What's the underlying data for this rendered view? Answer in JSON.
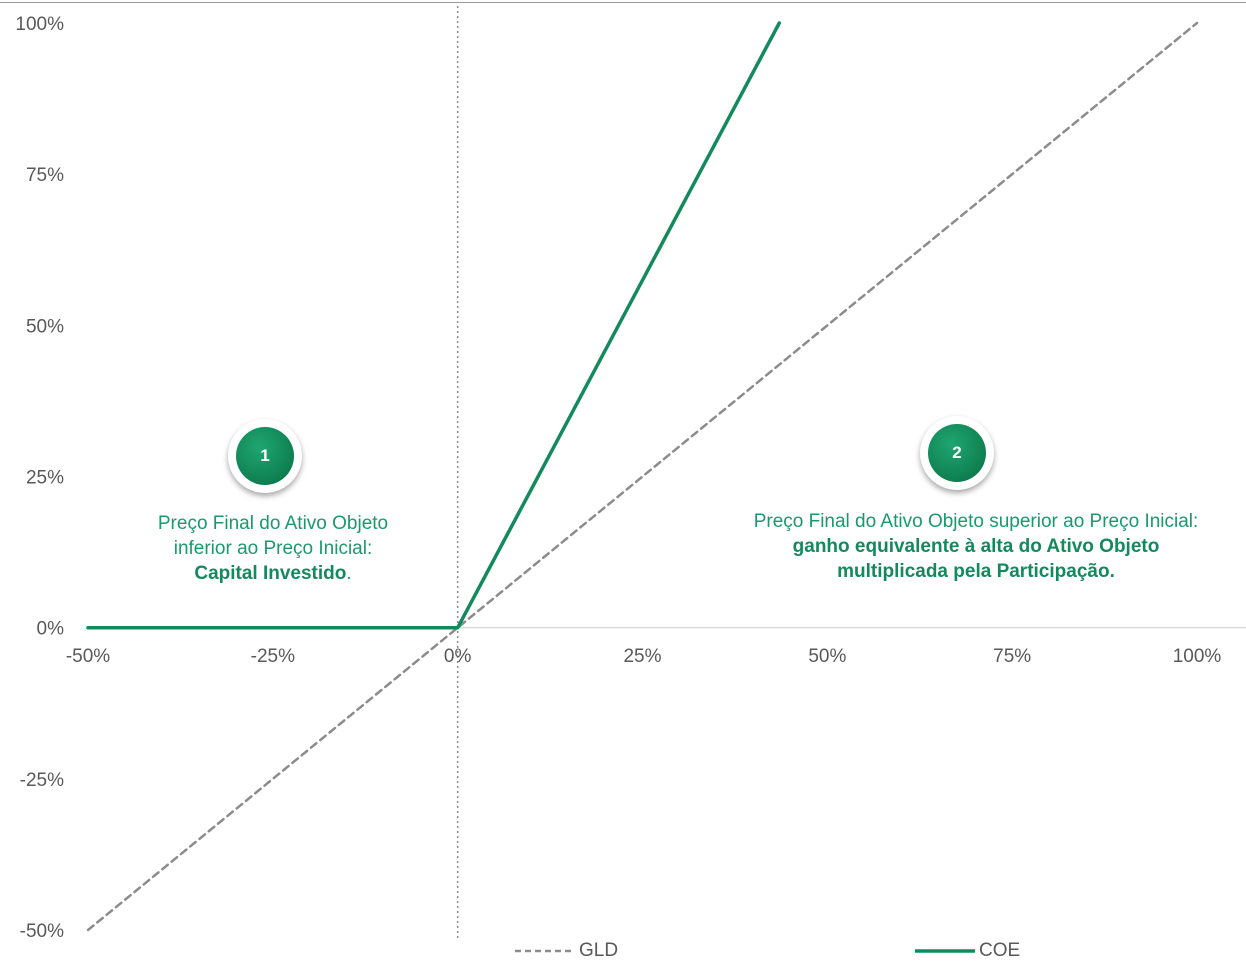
{
  "chart_data": {
    "type": "line",
    "x_ticks": [
      "-50%",
      "-25%",
      "0%",
      "25%",
      "50%",
      "75%",
      "100%"
    ],
    "y_ticks": [
      "100%",
      "75%",
      "50%",
      "25%",
      "0%",
      "-25%",
      "-50%"
    ],
    "xlim": [
      -50,
      100
    ],
    "ylim": [
      -50,
      100
    ],
    "grid": false,
    "legend_position": "bottom",
    "series": [
      {
        "name": "GLD",
        "style": "dashed",
        "color": "#8c8c8c",
        "points": [
          [
            -50,
            -50
          ],
          [
            0,
            0
          ],
          [
            100,
            100
          ]
        ]
      },
      {
        "name": "COE",
        "style": "solid",
        "color": "#138a5e",
        "points": [
          [
            -50,
            0
          ],
          [
            0,
            0
          ],
          [
            43.5,
            100
          ]
        ]
      }
    ],
    "annotations": [
      {
        "badge": "1",
        "lines": [
          "Preço Final do Ativo Objeto",
          "inferior ao Preço Inicial:"
        ],
        "bold": "Capital Investido",
        "suffix": "."
      },
      {
        "badge": "2",
        "lines": [
          "Preço Final do Ativo Objeto superior ao Preço Inicial:"
        ],
        "bold_lines": [
          "ganho equivalente à alta do Ativo Objeto",
          "multiplicada pela Participação."
        ]
      }
    ]
  },
  "colors": {
    "accent": "#138a5e",
    "text_green": "#1a9a6c",
    "gld": "#8c8c8c",
    "axis_text": "#595959"
  }
}
